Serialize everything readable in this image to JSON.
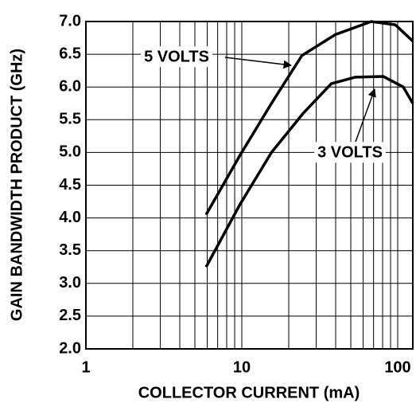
{
  "chart_data": {
    "type": "line",
    "xlabel": "COLLECTOR CURRENT (mA)",
    "ylabel": "GAIN BANDWIDTH PRODUCT (GHz)",
    "xscale": "log",
    "xlim": [
      1,
      125
    ],
    "ylim": [
      2,
      7
    ],
    "xticks": [
      1,
      10,
      100
    ],
    "xgrid": [
      2,
      3,
      4,
      5,
      6,
      7,
      8,
      9,
      20,
      30,
      40,
      50,
      60,
      70,
      80,
      90
    ],
    "yticks": [
      {
        "value": 2,
        "label": "2.0"
      },
      {
        "value": 2.5,
        "label": "2.5"
      },
      {
        "value": 3,
        "label": "3.0"
      },
      {
        "value": 3.5,
        "label": "3.5"
      },
      {
        "value": 4,
        "label": "4.0"
      },
      {
        "value": 4.5,
        "label": "4.5"
      },
      {
        "value": 5,
        "label": "5.0"
      },
      {
        "value": 5.5,
        "label": "5.5"
      },
      {
        "value": 6,
        "label": "6.0"
      },
      {
        "value": 6.5,
        "label": "6.5"
      },
      {
        "value": 7,
        "label": "7.0"
      }
    ],
    "grid": true,
    "series": [
      {
        "name": "5 VOLTS",
        "color": "#000000",
        "x": [
          5.9,
          9.7,
          15.5,
          24.3,
          39.8,
          67.6,
          96.5,
          125
        ],
        "values": [
          4.05,
          4.95,
          5.75,
          6.48,
          6.8,
          7.0,
          6.95,
          6.7
        ]
      },
      {
        "name": "3 VOLTS",
        "color": "#000000",
        "x": [
          5.9,
          9.7,
          15.5,
          24.8,
          37.5,
          53.5,
          80.9,
          108.6,
          125
        ],
        "values": [
          3.25,
          4.2,
          5.0,
          5.6,
          6.05,
          6.15,
          6.16,
          6.0,
          5.75
        ]
      }
    ]
  }
}
